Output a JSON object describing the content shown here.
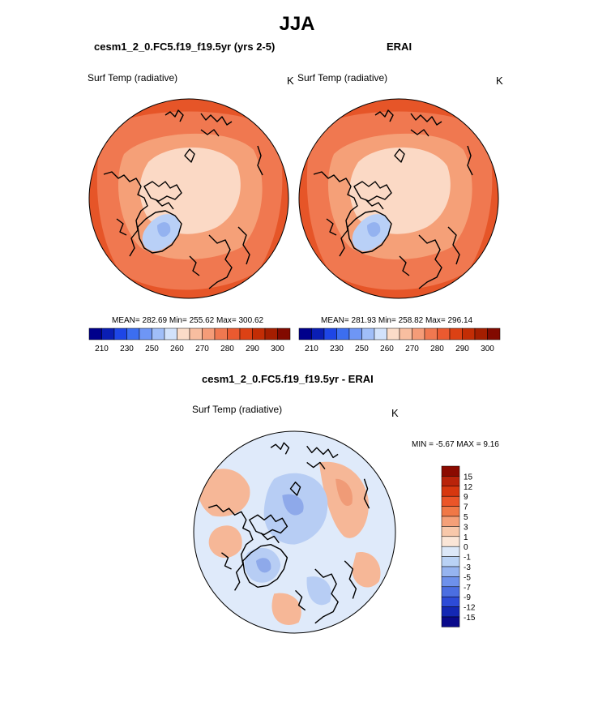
{
  "page": {
    "title": "JJA",
    "diff_title": "cesm1_2_0.FC5.f19_f19.5yr - ERAI"
  },
  "panels": [
    {
      "title": "cesm1_2_0.FC5.f19_f19.5yr (yrs 2-5)",
      "variable": "Surf Temp (radiative)",
      "units": "K",
      "stats": "MEAN= 282.69  Min= 255.62  Max= 300.62"
    },
    {
      "title": "ERAI",
      "variable": "Surf Temp (radiative)",
      "units": "K",
      "stats": "MEAN= 281.93  Min= 258.82  Max= 296.14"
    },
    {
      "title": "cesm1_2_0.FC5.f19_f19.5yr - ERAI",
      "variable": "Surf Temp (radiative)",
      "units": "K",
      "stats": "MIN =  -5.67 MAX =   9.16"
    }
  ],
  "colorbar_abs": {
    "ticks": [
      "210",
      "230",
      "250",
      "260",
      "270",
      "280",
      "290",
      "300"
    ],
    "colors": [
      "#00008b",
      "#0a1eb4",
      "#1e46e6",
      "#3c6ef0",
      "#6e96f5",
      "#a0bef8",
      "#d2e2fb",
      "#fbdcc8",
      "#f8bea0",
      "#f59c78",
      "#f07850",
      "#eb5a30",
      "#dc4114",
      "#c32d05",
      "#a51e00",
      "#820a00"
    ]
  },
  "colorbar_diff": {
    "ticks": [
      "15",
      "12",
      "9",
      "7",
      "5",
      "3",
      "1",
      "0",
      "-1",
      "-3",
      "-5",
      "-7",
      "-9",
      "-12",
      "-15"
    ],
    "colors": [
      "#8b0a00",
      "#b9230a",
      "#d7370f",
      "#eb5528",
      "#f07846",
      "#f5a078",
      "#f8c8aa",
      "#fbe6d7",
      "#dce8f8",
      "#b9d2f5",
      "#96b4f0",
      "#6e91eb",
      "#4b6ee1",
      "#2d4bd7",
      "#1428b4",
      "#0a0a8b"
    ]
  },
  "map_colors": {
    "coast": "#000000",
    "warm_dark": "#e65528",
    "warm_mid": "#f07850",
    "warm_light": "#f5a078",
    "pale": "#fbd9c5",
    "cold": "#b9d0f7",
    "cold_mid": "#94b2f0",
    "diff_ocean": "#dfeafa",
    "diff_warm": "#f6b797",
    "diff_warm2": "#f09b77",
    "diff_cold": "#b7cdf4",
    "diff_cold2": "#8ea9ea"
  }
}
